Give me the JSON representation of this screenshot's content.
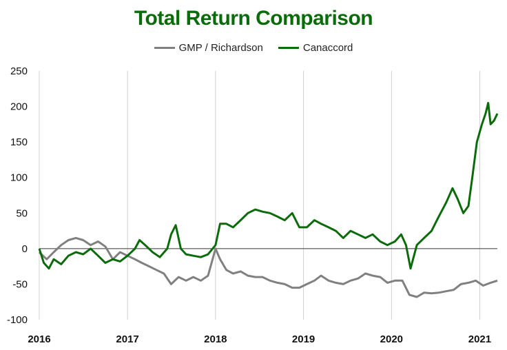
{
  "chart_data": {
    "type": "line",
    "title": "Total Return Comparison",
    "xlabel": "",
    "ylabel": "",
    "ylim": [
      -100,
      250
    ],
    "xlim": [
      "2016-01-01",
      "2021-03-15"
    ],
    "yticks": [
      250,
      200,
      150,
      100,
      50,
      0,
      -50,
      -100
    ],
    "xticks": [
      {
        "date": "2016-01-01",
        "label": "2016"
      },
      {
        "date": "2017-01-01",
        "label": "2017"
      },
      {
        "date": "2018-01-01",
        "label": "2018"
      },
      {
        "date": "2019-01-01",
        "label": "2019"
      },
      {
        "date": "2020-01-01",
        "label": "2020"
      },
      {
        "date": "2021-01-01",
        "label": "2021"
      }
    ],
    "grid": "vertical",
    "zero_line": true,
    "legend_position": "top-center",
    "series": [
      {
        "name": "GMP / Richardson",
        "color": "#808080",
        "points": [
          [
            "2016-01-01",
            -5
          ],
          [
            "2016-02-01",
            -15
          ],
          [
            "2016-03-01",
            -5
          ],
          [
            "2016-04-01",
            5
          ],
          [
            "2016-05-01",
            12
          ],
          [
            "2016-06-01",
            15
          ],
          [
            "2016-07-01",
            12
          ],
          [
            "2016-08-01",
            5
          ],
          [
            "2016-09-01",
            10
          ],
          [
            "2016-10-01",
            3
          ],
          [
            "2016-11-01",
            -15
          ],
          [
            "2016-12-01",
            -5
          ],
          [
            "2017-01-01",
            -10
          ],
          [
            "2017-02-01",
            -15
          ],
          [
            "2017-03-01",
            -20
          ],
          [
            "2017-04-01",
            -25
          ],
          [
            "2017-05-01",
            -30
          ],
          [
            "2017-06-01",
            -35
          ],
          [
            "2017-07-01",
            -50
          ],
          [
            "2017-08-01",
            -40
          ],
          [
            "2017-09-01",
            -45
          ],
          [
            "2017-10-01",
            -40
          ],
          [
            "2017-11-01",
            -45
          ],
          [
            "2017-12-01",
            -38
          ],
          [
            "2018-01-01",
            0
          ],
          [
            "2018-01-20",
            -15
          ],
          [
            "2018-02-15",
            -30
          ],
          [
            "2018-03-15",
            -35
          ],
          [
            "2018-04-15",
            -32
          ],
          [
            "2018-05-15",
            -38
          ],
          [
            "2018-06-15",
            -40
          ],
          [
            "2018-07-15",
            -40
          ],
          [
            "2018-08-15",
            -45
          ],
          [
            "2018-09-15",
            -48
          ],
          [
            "2018-10-15",
            -50
          ],
          [
            "2018-11-15",
            -55
          ],
          [
            "2018-12-15",
            -55
          ],
          [
            "2019-01-15",
            -50
          ],
          [
            "2019-02-15",
            -45
          ],
          [
            "2019-03-15",
            -38
          ],
          [
            "2019-04-15",
            -45
          ],
          [
            "2019-05-15",
            -48
          ],
          [
            "2019-06-15",
            -50
          ],
          [
            "2019-07-15",
            -45
          ],
          [
            "2019-08-15",
            -42
          ],
          [
            "2019-09-15",
            -35
          ],
          [
            "2019-10-15",
            -38
          ],
          [
            "2019-11-15",
            -40
          ],
          [
            "2019-12-15",
            -48
          ],
          [
            "2020-01-15",
            -45
          ],
          [
            "2020-02-15",
            -45
          ],
          [
            "2020-03-15",
            -65
          ],
          [
            "2020-04-15",
            -68
          ],
          [
            "2020-05-15",
            -62
          ],
          [
            "2020-06-15",
            -63
          ],
          [
            "2020-07-15",
            -62
          ],
          [
            "2020-08-15",
            -60
          ],
          [
            "2020-09-15",
            -58
          ],
          [
            "2020-10-15",
            -50
          ],
          [
            "2020-11-15",
            -48
          ],
          [
            "2020-12-15",
            -45
          ],
          [
            "2021-01-15",
            -52
          ],
          [
            "2021-02-15",
            -48
          ],
          [
            "2021-03-15",
            -45
          ]
        ]
      },
      {
        "name": "Canaccord",
        "color": "#0a6b0a",
        "points": [
          [
            "2016-01-01",
            0
          ],
          [
            "2016-01-20",
            -20
          ],
          [
            "2016-02-10",
            -28
          ],
          [
            "2016-03-01",
            -15
          ],
          [
            "2016-04-01",
            -22
          ],
          [
            "2016-05-01",
            -10
          ],
          [
            "2016-06-01",
            -5
          ],
          [
            "2016-07-01",
            -8
          ],
          [
            "2016-08-01",
            0
          ],
          [
            "2016-09-01",
            -10
          ],
          [
            "2016-10-01",
            -20
          ],
          [
            "2016-11-01",
            -15
          ],
          [
            "2016-12-01",
            -18
          ],
          [
            "2017-01-01",
            -10
          ],
          [
            "2017-02-01",
            0
          ],
          [
            "2017-02-20",
            12
          ],
          [
            "2017-03-15",
            5
          ],
          [
            "2017-04-15",
            -5
          ],
          [
            "2017-05-15",
            -12
          ],
          [
            "2017-06-15",
            0
          ],
          [
            "2017-07-01",
            20
          ],
          [
            "2017-07-20",
            33
          ],
          [
            "2017-08-10",
            0
          ],
          [
            "2017-09-01",
            -8
          ],
          [
            "2017-10-01",
            -10
          ],
          [
            "2017-11-01",
            -12
          ],
          [
            "2017-12-01",
            -8
          ],
          [
            "2018-01-01",
            5
          ],
          [
            "2018-01-20",
            35
          ],
          [
            "2018-02-15",
            35
          ],
          [
            "2018-03-15",
            30
          ],
          [
            "2018-04-15",
            40
          ],
          [
            "2018-05-15",
            50
          ],
          [
            "2018-06-15",
            55
          ],
          [
            "2018-07-15",
            52
          ],
          [
            "2018-08-15",
            50
          ],
          [
            "2018-09-15",
            45
          ],
          [
            "2018-10-15",
            40
          ],
          [
            "2018-11-15",
            50
          ],
          [
            "2018-12-15",
            30
          ],
          [
            "2019-01-15",
            30
          ],
          [
            "2019-02-15",
            40
          ],
          [
            "2019-03-15",
            35
          ],
          [
            "2019-04-15",
            30
          ],
          [
            "2019-05-15",
            25
          ],
          [
            "2019-06-15",
            15
          ],
          [
            "2019-07-15",
            25
          ],
          [
            "2019-08-15",
            20
          ],
          [
            "2019-09-15",
            15
          ],
          [
            "2019-10-15",
            20
          ],
          [
            "2019-11-15",
            10
          ],
          [
            "2019-12-15",
            5
          ],
          [
            "2020-01-15",
            10
          ],
          [
            "2020-02-10",
            20
          ],
          [
            "2020-03-01",
            5
          ],
          [
            "2020-03-20",
            -28
          ],
          [
            "2020-04-15",
            5
          ],
          [
            "2020-05-15",
            15
          ],
          [
            "2020-06-15",
            25
          ],
          [
            "2020-07-15",
            45
          ],
          [
            "2020-08-15",
            65
          ],
          [
            "2020-09-10",
            85
          ],
          [
            "2020-10-01",
            70
          ],
          [
            "2020-10-25",
            50
          ],
          [
            "2020-11-15",
            60
          ],
          [
            "2020-12-01",
            100
          ],
          [
            "2020-12-20",
            150
          ],
          [
            "2021-01-10",
            175
          ],
          [
            "2021-01-25",
            190
          ],
          [
            "2021-02-05",
            205
          ],
          [
            "2021-02-15",
            175
          ],
          [
            "2021-03-01",
            180
          ],
          [
            "2021-03-15",
            190
          ]
        ]
      }
    ]
  }
}
